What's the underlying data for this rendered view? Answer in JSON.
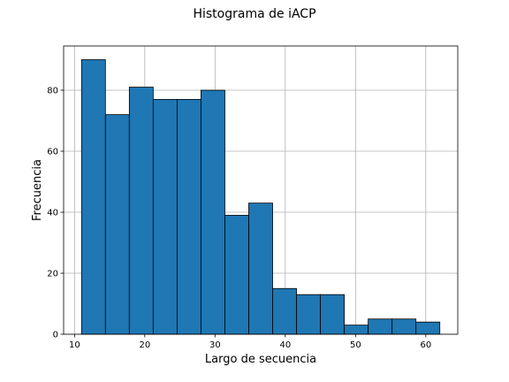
{
  "chart_data": {
    "type": "bar",
    "title": "Histograma de iACP",
    "xlabel": "Largo de secuencia",
    "ylabel": "Frecuencia",
    "bin_edges": [
      11,
      14.4,
      17.8,
      21.2,
      24.6,
      28,
      31.4,
      34.8,
      38.2,
      41.6,
      45,
      48.4,
      51.8,
      55.2,
      58.6,
      62
    ],
    "values": [
      90,
      72,
      81,
      77,
      77,
      80,
      39,
      43,
      15,
      13,
      13,
      3,
      5,
      5,
      4
    ],
    "xlim": [
      8.45,
      64.55
    ],
    "ylim": [
      0,
      94.5
    ],
    "xticks": [
      10,
      20,
      30,
      40,
      50,
      60
    ],
    "yticks": [
      0,
      20,
      40,
      60,
      80
    ],
    "grid": true,
    "bar_color": "#1f77b4",
    "edge_color": "#000000"
  }
}
